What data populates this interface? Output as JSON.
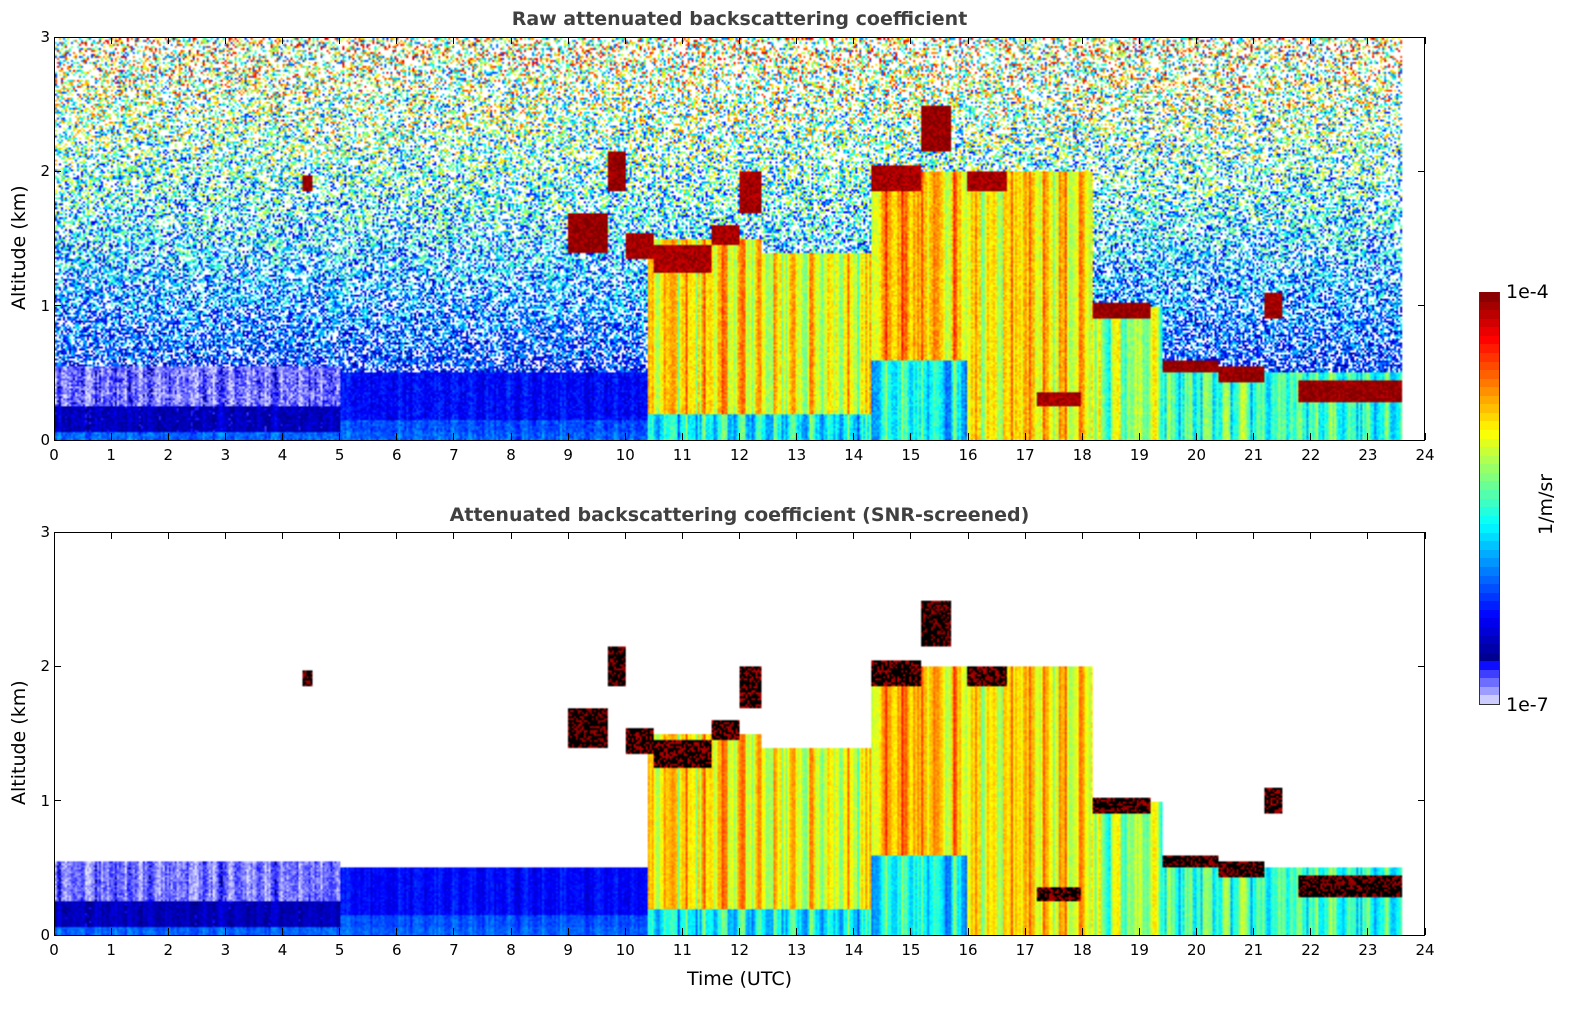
{
  "chart_data": [
    {
      "type": "heatmap",
      "id": "raw",
      "title": "Raw attenuated backscattering coefficient",
      "xlabel": "",
      "ylabel": "Altitude (km)",
      "screened": false
    },
    {
      "type": "heatmap",
      "id": "snr",
      "title": "Attenuated backscattering coefficient (SNR-screened)",
      "xlabel": "Time (UTC)",
      "ylabel": "Altitude (km)",
      "screened": true
    }
  ],
  "shared": {
    "xlim": [
      0,
      24
    ],
    "ylim": [
      0,
      3
    ],
    "xticks": [
      "0",
      "1",
      "2",
      "3",
      "4",
      "5",
      "6",
      "7",
      "8",
      "9",
      "10",
      "11",
      "12",
      "13",
      "14",
      "15",
      "16",
      "17",
      "18",
      "19",
      "20",
      "21",
      "22",
      "23",
      "24"
    ],
    "yticks": [
      "0",
      "1",
      "2",
      "3"
    ],
    "data_end_time": 23.6,
    "value_scale": "log10",
    "layers_note": "[t_start, t_end, alt_bottom_km, alt_top_km, log10_backscatter]",
    "layers": [
      [
        0,
        5,
        0,
        0.55,
        -6.85
      ],
      [
        0,
        5,
        0,
        0.25,
        -6.55
      ],
      [
        0,
        10.4,
        0,
        0.06,
        -6.1
      ],
      [
        5,
        10.4,
        0,
        0.5,
        -6.35
      ],
      [
        5,
        10.4,
        0,
        0.15,
        -6.15
      ],
      [
        10.4,
        16,
        0,
        0.6,
        -5.7
      ],
      [
        10.4,
        12.4,
        0.2,
        1.5,
        -4.95
      ],
      [
        12.4,
        14.3,
        0.2,
        1.4,
        -5.05
      ],
      [
        14.3,
        16,
        0.6,
        2.0,
        -4.85
      ],
      [
        16,
        18.2,
        0,
        2.0,
        -4.95
      ],
      [
        18.2,
        19.4,
        0,
        1.0,
        -5.3
      ],
      [
        19.4,
        23.6,
        0,
        0.5,
        -5.55
      ]
    ],
    "strong_layers": [
      [
        4.35,
        4.5,
        1.85,
        1.97,
        -4.05
      ],
      [
        9,
        9.7,
        1.4,
        1.7,
        -4.05
      ],
      [
        9.7,
        10,
        1.85,
        2.15,
        -4.05
      ],
      [
        10,
        10.5,
        1.35,
        1.55,
        -4.1
      ],
      [
        10.5,
        11.5,
        1.25,
        1.45,
        -4.1
      ],
      [
        11.5,
        12,
        1.45,
        1.6,
        -4.1
      ],
      [
        12,
        12.4,
        1.7,
        2.0,
        -4.1
      ],
      [
        14.3,
        15.2,
        1.85,
        2.05,
        -4.1
      ],
      [
        15.2,
        15.7,
        2.15,
        2.5,
        -4.05
      ],
      [
        16,
        16.7,
        1.85,
        2.0,
        -4.1
      ],
      [
        17.2,
        18,
        0.25,
        0.35,
        -4.1
      ],
      [
        18.2,
        19.2,
        0.9,
        1.02,
        -4.05
      ],
      [
        19.4,
        20.4,
        0.5,
        0.6,
        -4.05
      ],
      [
        20.4,
        21.2,
        0.43,
        0.55,
        -4.05
      ],
      [
        21.2,
        21.5,
        0.9,
        1.1,
        -4.1
      ],
      [
        21.8,
        23.6,
        0.28,
        0.45,
        -4.05
      ]
    ],
    "colorbar": {
      "label": "1/m/sr",
      "min_label": "1e-7",
      "max_label": "1e-4",
      "min": -7,
      "max": -4
    }
  }
}
